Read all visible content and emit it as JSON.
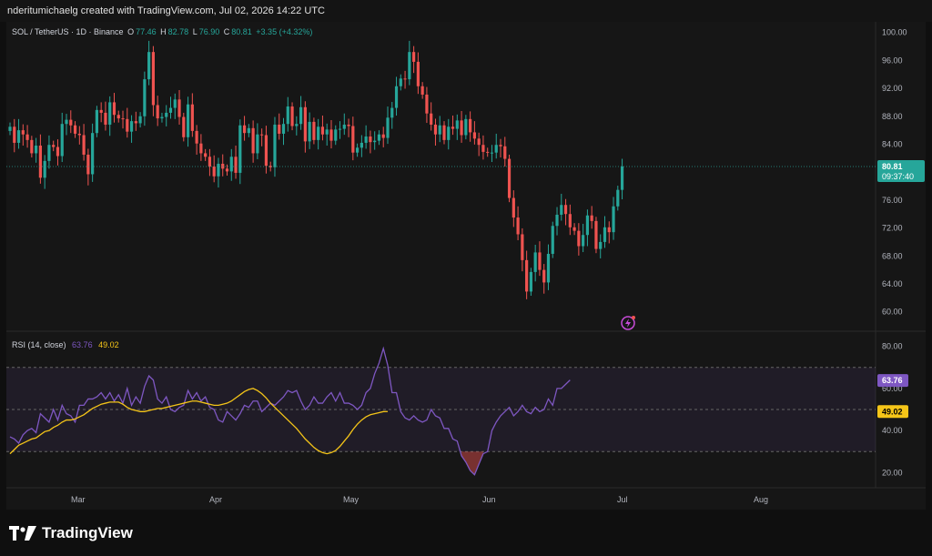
{
  "header": {
    "credit": "nderitumichaelg created with TradingView.com, Jul 02, 2026 14:22 UTC"
  },
  "legend": {
    "symbol": "SOL / TetherUS · 1D · Binance",
    "o_label": "O",
    "o_value": "77.46",
    "h_label": "H",
    "h_value": "82.78",
    "l_label": "L",
    "l_value": "76.90",
    "c_label": "C",
    "c_value": "80.81",
    "change": "+3.35 (+4.32%)"
  },
  "rsi_legend": {
    "label": "RSI (14, close)",
    "rsi_value": "63.76",
    "ma_value": "49.02"
  },
  "brand": {
    "name": "TradingView"
  },
  "colors": {
    "up": "#26a69a",
    "down": "#ef5350",
    "rsi": "#7e57c2",
    "rsi_ma": "#f5c518",
    "price_badge": "#26a69a"
  },
  "chart_data": [
    {
      "type": "candlestick",
      "symbol": "SOL / TetherUS",
      "interval": "1D",
      "exchange": "Binance",
      "ylim": [
        58,
        101
      ],
      "y_ticks": [
        "100.00",
        "96.00",
        "92.00",
        "88.00",
        "84.00",
        "80.00",
        "76.00",
        "72.00",
        "68.00",
        "64.00",
        "60.00"
      ],
      "x_ticks": [
        "Mar",
        "Apr",
        "May",
        "Jun",
        "Jul",
        "Aug"
      ],
      "last_price": "80.81",
      "countdown": "09:37:40",
      "closes": [
        86.5,
        84.2,
        86,
        85.4,
        84.6,
        82.7,
        83.8,
        79.2,
        81.6,
        83.9,
        83.6,
        82.3,
        86.9,
        87.5,
        86.7,
        85.5,
        85.3,
        82.5,
        79.7,
        85.6,
        88.9,
        88.5,
        86.8,
        90,
        88.2,
        87.7,
        87.6,
        85.8,
        87.3,
        87,
        88,
        93.3,
        97.2,
        89.6,
        87.7,
        87.9,
        88.5,
        89.2,
        90.4,
        87.9,
        85,
        89.7,
        85.9,
        84.1,
        82.7,
        82.2,
        80.8,
        79.4,
        81.2,
        80.5,
        80.1,
        82.2,
        79.9,
        86.7,
        85.6,
        86.3,
        82.7,
        85.4,
        85.3,
        80.9,
        80.7,
        86.8,
        85.5,
        86.9,
        89.4,
        86.6,
        86.9,
        89.3,
        84.4,
        87.2,
        84.6,
        86.5,
        85.4,
        86.1,
        84.5,
        86.1,
        86.2,
        86.8,
        86.6,
        82.8,
        83.5,
        84.2,
        85.1,
        84.3,
        84.5,
        85.4,
        84.9,
        87.8,
        89.2,
        92.3,
        93.4,
        93.3,
        97.2,
        95.8,
        92.3,
        91.1,
        88.4,
        86.8,
        85.4,
        86.7,
        84.6,
        86.5,
        86.2,
        87.4,
        85.3,
        87.6,
        85.7,
        84.8,
        83.9,
        82.9,
        82.8,
        82.8,
        83.9,
        83.7,
        81.9,
        76.3,
        73.5,
        71.1,
        67.4,
        62.9,
        65.7,
        68.5,
        66,
        64.2,
        68.3,
        72.3,
        73.9,
        75.3,
        74,
        72.1,
        71.6,
        69.4,
        71,
        73.8,
        73,
        69,
        70,
        72.1,
        71.4,
        75.1,
        77.46,
        80.81
      ]
    },
    {
      "type": "line",
      "name": "RSI (14, close)",
      "ylim": [
        15,
        85
      ],
      "y_ticks": [
        "80.00",
        "60.00",
        "40.00",
        "20.00"
      ],
      "bands": [
        70,
        50,
        30
      ],
      "rsi_badge": "63.76",
      "ma_badge": "49.02",
      "series": [
        {
          "name": "RSI",
          "values": [
            37,
            36,
            34,
            38,
            40,
            41,
            39,
            48,
            46,
            44,
            50,
            45,
            52,
            48,
            47,
            44,
            52,
            52,
            55,
            55,
            56,
            58,
            55,
            58,
            54,
            57,
            53,
            60,
            52,
            56,
            53,
            61,
            66,
            64,
            55,
            53,
            56,
            50,
            49,
            51,
            52,
            59,
            55,
            58,
            54,
            56,
            51,
            50,
            45,
            44,
            49,
            47,
            45,
            48,
            52,
            51,
            54,
            54,
            49,
            51,
            53,
            52,
            54,
            56,
            59,
            58,
            59,
            54,
            50,
            52,
            56,
            53,
            53,
            56,
            58,
            54,
            58,
            53,
            53,
            52,
            50,
            52,
            58,
            60,
            67,
            72,
            79,
            71,
            58,
            58,
            49,
            46,
            45,
            47,
            45,
            44,
            45,
            50,
            47,
            46,
            41,
            41,
            36,
            35,
            28,
            25,
            21,
            19,
            24,
            29,
            30,
            40,
            44,
            47,
            49,
            51,
            47,
            49,
            52,
            49,
            48,
            51,
            49,
            50,
            55,
            52,
            60,
            60,
            62,
            64
          ]
        },
        {
          "name": "RSI-based MA",
          "values": [
            29,
            31,
            33,
            34,
            35,
            36,
            36.5,
            38,
            39.5,
            40,
            41.5,
            42.5,
            44,
            45,
            45,
            45.5,
            46.5,
            47.5,
            49,
            50.5,
            51.5,
            52.5,
            53,
            53.5,
            53.5,
            53.5,
            52.5,
            51,
            50,
            49.5,
            49,
            49,
            49.5,
            50,
            50.5,
            50.5,
            51,
            51.5,
            52,
            52.5,
            53,
            53.5,
            54,
            54,
            53.5,
            53,
            52.5,
            52,
            52,
            52.5,
            53,
            54,
            55.5,
            57,
            58.5,
            59.5,
            60,
            59,
            57.5,
            55.5,
            53,
            51,
            49,
            47,
            45,
            43,
            41,
            38.5,
            36,
            34,
            32,
            30.5,
            29.5,
            29,
            29.5,
            30.5,
            32.5,
            35,
            37.5,
            40.5,
            43,
            45,
            46.5,
            47.5,
            48,
            48.5,
            49,
            49.02
          ]
        }
      ]
    }
  ]
}
